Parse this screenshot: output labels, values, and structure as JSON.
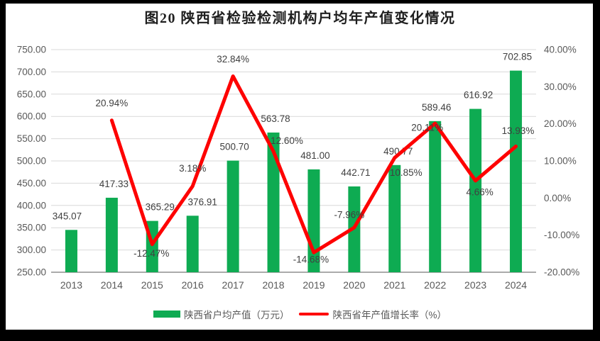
{
  "colors": {
    "frame": "#000000",
    "background": "#FFFFFF",
    "gridline": "#D9D9D9",
    "axis_line": "#ABABAB",
    "tick_text": "#595959",
    "label_text": "#404040",
    "title_text": "#1F1F1F"
  },
  "chart_data": {
    "type": "combo",
    "title": "图20  陕西省检验检测机构户均年产值变化情况",
    "categories": [
      "2013",
      "2014",
      "2015",
      "2016",
      "2017",
      "2018",
      "2019",
      "2020",
      "2021",
      "2022",
      "2023",
      "2024"
    ],
    "series": [
      {
        "name": "陕西省户均产值（万元）",
        "type": "bar",
        "axis": "left",
        "color": "#0EAB52",
        "values": [
          345.07,
          417.33,
          365.29,
          376.91,
          500.7,
          563.78,
          481.0,
          442.71,
          490.77,
          589.46,
          616.92,
          702.85
        ],
        "labels": [
          "345.07",
          "417.33",
          "365.29",
          "376.91",
          "500.70",
          "563.78",
          "481.00",
          "442.71",
          "490.77",
          "589.46",
          "616.92",
          "702.85"
        ]
      },
      {
        "name": "陕西省年产值增长率（%）",
        "type": "line",
        "axis": "right",
        "color": "#FE0000",
        "values": [
          null,
          20.94,
          -12.47,
          3.18,
          32.84,
          12.6,
          -14.68,
          -7.96,
          10.85,
          20.11,
          4.66,
          13.93
        ],
        "labels": [
          null,
          "20.94%",
          "-12.47%",
          "3.18%",
          "32.84%",
          "12.60%",
          "-14.68%",
          "-7.96%",
          "10.85%",
          "20.11%",
          "4.66%",
          "13.93%"
        ]
      }
    ],
    "left_axis": {
      "min": 250,
      "max": 750,
      "step": 50,
      "ticks": [
        "750.00",
        "700.00",
        "650.00",
        "600.00",
        "550.00",
        "500.00",
        "450.00",
        "400.00",
        "350.00",
        "300.00",
        "250.00"
      ]
    },
    "right_axis": {
      "min": -20,
      "max": 40,
      "step": 10,
      "ticks": [
        "40.00%",
        "30.00%",
        "20.00%",
        "10.00%",
        "0.00%",
        "-10.00%",
        "-20.00%"
      ]
    },
    "grid": true,
    "legend_position": "bottom"
  }
}
